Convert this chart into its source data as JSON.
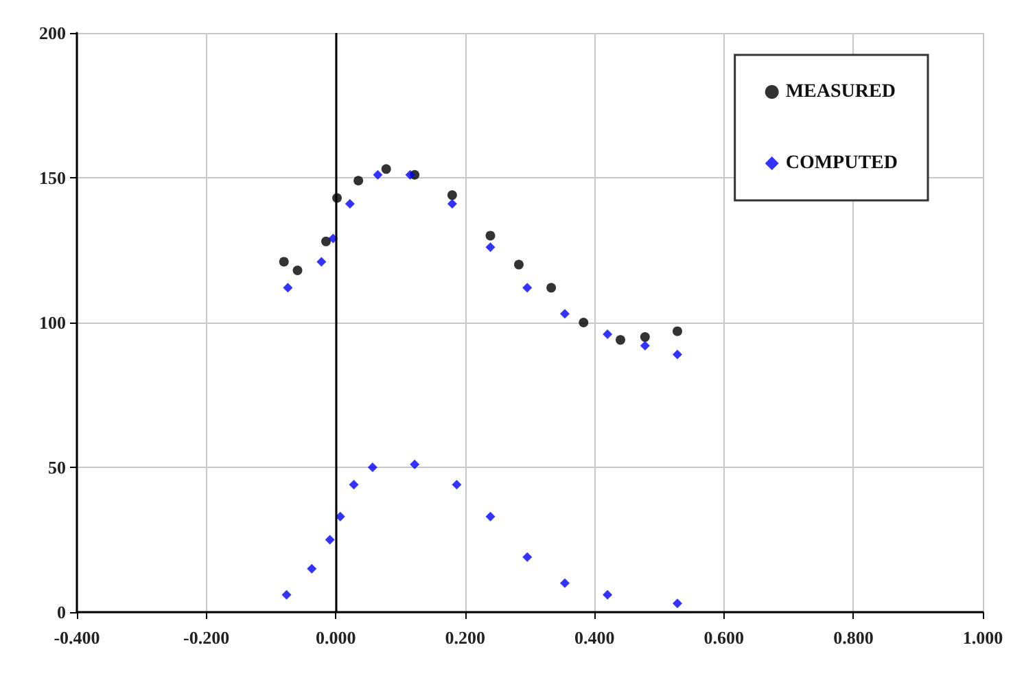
{
  "chart_data": {
    "type": "scatter",
    "xlim": [
      -0.4,
      1.0
    ],
    "xticks": [
      {
        "value": -0.4,
        "label": "-0.400"
      },
      {
        "value": -0.2,
        "label": "-0.200"
      },
      {
        "value": 0,
        "label": "0.000"
      },
      {
        "value": 0.2,
        "label": "0.200"
      },
      {
        "value": 0.4,
        "label": "0.400"
      },
      {
        "value": 0.6,
        "label": "0.600"
      },
      {
        "value": 0.8,
        "label": "0.800"
      },
      {
        "value": 1.0,
        "label": "1.000"
      }
    ],
    "ylim": [
      0,
      200
    ],
    "yticks": [
      0,
      50,
      100,
      150,
      200
    ],
    "grid": true,
    "legend": "top right",
    "ref_lines": [
      {
        "axis": "x",
        "value": 0,
        "color": "#000000"
      }
    ],
    "series": [
      {
        "name": "MEASURED",
        "color": "#000000",
        "marker": "circle",
        "x": [
          -0.08,
          -0.059,
          -0.015,
          0.002,
          0.035,
          0.078,
          0.122,
          0.18,
          0.239,
          0.283,
          0.333,
          0.383,
          0.44,
          0.478,
          0.528
        ],
        "values": [
          121,
          118,
          128,
          143,
          149,
          153,
          151,
          144,
          130,
          120,
          112,
          100,
          94,
          95,
          97
        ]
      },
      {
        "name": "COMPUTED",
        "color": "#0000ff",
        "marker": "diamond",
        "x": [
          -0.074,
          -0.022,
          -0.004,
          0.022,
          0.065,
          0.115,
          0.18,
          0.239,
          0.296,
          0.354,
          0.42,
          0.478,
          0.528
        ],
        "values": [
          112,
          121,
          129,
          141,
          151,
          151,
          141,
          126,
          112,
          103,
          96,
          92,
          89
        ]
      },
      {
        "color": "#0000ff",
        "marker": "diamond",
        "x": [
          -0.076,
          -0.037,
          -0.009,
          0.007,
          0.028,
          0.057,
          0.122,
          0.187,
          0.239,
          0.296,
          0.354,
          0.42,
          0.528
        ],
        "values": [
          6,
          15,
          25,
          33,
          44,
          50,
          51,
          44,
          33,
          19,
          10,
          6,
          3
        ]
      }
    ]
  }
}
